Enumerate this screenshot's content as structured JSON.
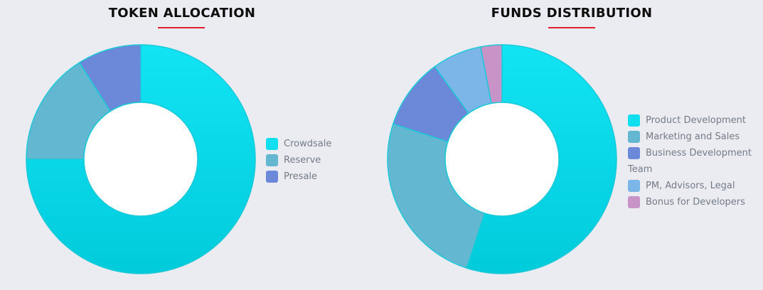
{
  "colors": {
    "title_underline": "#e01e2d",
    "cyan_light": "#12e4f4",
    "cyan_dark": "#00cbdb",
    "cyan_stroke": "#1cc9d8",
    "background": "#ebecf2",
    "hole": "#ffffff"
  },
  "chart_data": [
    {
      "type": "pie",
      "donut": true,
      "title": "TOKEN ALLOCATION",
      "categories": [
        "Crowdsale",
        "Reserve",
        "Presale"
      ],
      "values": [
        75,
        16,
        9
      ],
      "unit": "%",
      "colors": [
        "#0fdfee",
        "#63b7d0",
        "#6b88d9"
      ],
      "legend_position": "right"
    },
    {
      "type": "pie",
      "donut": true,
      "title": "FUNDS DISTRIBUTION",
      "categories": [
        "Product Development",
        "Marketing and Sales",
        "Business Development Team",
        "PM, Advisors, Legal",
        "Bonus for Developers"
      ],
      "legend_lines": [
        [
          "Product Development"
        ],
        [
          "Marketing and Sales"
        ],
        [
          "Business Development",
          "Team"
        ],
        [
          "PM, Advisors, Legal"
        ],
        [
          "Bonus for Developers"
        ]
      ],
      "values": [
        55,
        25,
        10,
        7,
        3
      ],
      "unit": "%",
      "colors": [
        "#0fdfee",
        "#63b7d0",
        "#6b88d9",
        "#7cb5e8",
        "#c893c6"
      ],
      "legend_position": "right"
    }
  ]
}
